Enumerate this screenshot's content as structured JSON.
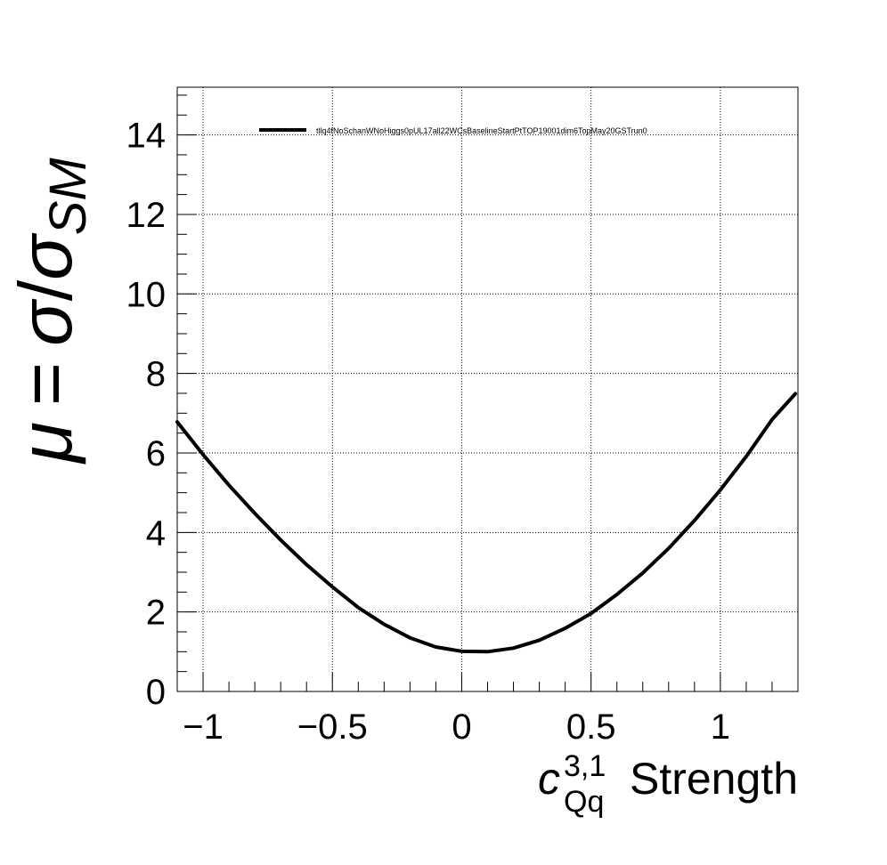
{
  "chart_data": {
    "type": "line",
    "xlim": [
      -1.1,
      1.3
    ],
    "ylim": [
      0,
      15.2
    ],
    "xticks": [
      -1,
      -0.5,
      0,
      0.5,
      1
    ],
    "xtick_labels": [
      "−1",
      "−0.5",
      "0",
      "0.5",
      "1"
    ],
    "yticks": [
      0,
      2,
      4,
      6,
      8,
      10,
      12,
      14
    ],
    "ytick_labels": [
      "0",
      "2",
      "4",
      "6",
      "8",
      "10",
      "12",
      "14"
    ],
    "grid": true,
    "legend_position": "top",
    "xlabel": {
      "symbol": "c",
      "superscript": "3,1",
      "subscript": "Qq",
      "suffix": "Strength"
    },
    "ylabel": {
      "mu": "μ",
      "equals": "=",
      "sigma": "σ",
      "slash": "/",
      "sigma_sm": "σ",
      "sm_subscript": "SM"
    },
    "series": [
      {
        "name": "tllq4fNoSchanWNoHiggs0pUL17all22WCsBaselineStartPtTOP19001dim6TopMay20GSTrun0",
        "color": "#000000",
        "x": [
          -1.1,
          -1.0,
          -0.9,
          -0.8,
          -0.7,
          -0.6,
          -0.5,
          -0.4,
          -0.3,
          -0.2,
          -0.1,
          0.0,
          0.1,
          0.2,
          0.3,
          0.4,
          0.5,
          0.6,
          0.7,
          0.8,
          0.9,
          1.0,
          1.1,
          1.2,
          1.29
        ],
        "y": [
          6.78,
          5.96,
          5.19,
          4.48,
          3.81,
          3.19,
          2.63,
          2.11,
          1.69,
          1.35,
          1.12,
          1.01,
          1.0,
          1.09,
          1.29,
          1.59,
          1.96,
          2.44,
          2.98,
          3.6,
          4.3,
          5.07,
          5.91,
          6.84,
          7.49
        ]
      }
    ]
  }
}
